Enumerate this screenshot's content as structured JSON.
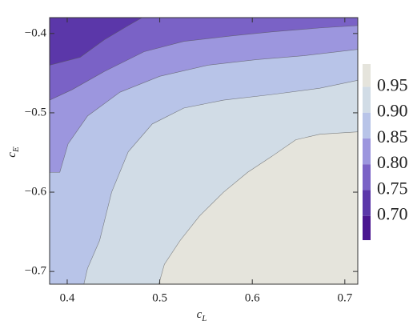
{
  "chart_data": {
    "type": "contour",
    "xlabel": "c",
    "xlabel_sub": "L",
    "ylabel": "c",
    "ylabel_sub": "E",
    "xlim": [
      0.381,
      0.714
    ],
    "ylim": [
      -0.716,
      -0.38
    ],
    "xticks": [
      0.4,
      0.5,
      0.6,
      0.7
    ],
    "yticks": [
      {
        "value": -0.7,
        "label": "−0.7"
      },
      {
        "value": -0.6,
        "label": "−0.6"
      },
      {
        "value": -0.5,
        "label": "−0.5"
      },
      {
        "value": -0.4,
        "label": "−0.4"
      }
    ],
    "zlim": [
      0.653,
      0.994
    ],
    "levels": [
      {
        "value": 0.7,
        "label": "0.70"
      },
      {
        "value": 0.75,
        "label": "0.75"
      },
      {
        "value": 0.8,
        "label": "0.80"
      },
      {
        "value": 0.85,
        "label": "0.85"
      },
      {
        "value": 0.9,
        "label": "0.90"
      },
      {
        "value": 0.95,
        "label": "0.95"
      }
    ],
    "colors": [
      "#4a1590",
      "#5b37a9",
      "#7a62c6",
      "#9c96de",
      "#b8c4e8",
      "#d1dce6",
      "#e5e4dc"
    ],
    "contours": [
      {
        "x": [
          0.381,
          0.414,
          0.44,
          0.466,
          0.481
        ],
        "y": [
          -0.44,
          -0.43,
          -0.408,
          -0.39,
          -0.38
        ]
      },
      {
        "x": [
          0.381,
          0.405,
          0.44,
          0.483,
          0.526,
          0.578,
          0.621,
          0.673,
          0.714
        ],
        "y": [
          -0.484,
          -0.471,
          -0.448,
          -0.423,
          -0.41,
          -0.403,
          -0.398,
          -0.393,
          -0.39
        ]
      },
      {
        "x": [
          0.381,
          0.392,
          0.401,
          0.422,
          0.457,
          0.5,
          0.552,
          0.604,
          0.656,
          0.714
        ],
        "y": [
          -0.575,
          -0.575,
          -0.539,
          -0.504,
          -0.474,
          -0.454,
          -0.44,
          -0.433,
          -0.428,
          -0.42
        ]
      },
      {
        "x": [
          0.418,
          0.422,
          0.435,
          0.448,
          0.466,
          0.492,
          0.526,
          0.569,
          0.621,
          0.673,
          0.714
        ],
        "y": [
          -0.716,
          -0.696,
          -0.661,
          -0.6,
          -0.549,
          -0.514,
          -0.494,
          -0.484,
          -0.477,
          -0.469,
          -0.459
        ]
      },
      {
        "x": [
          0.499,
          0.505,
          0.522,
          0.543,
          0.569,
          0.595,
          0.621,
          0.647,
          0.673,
          0.714
        ],
        "y": [
          -0.716,
          -0.691,
          -0.661,
          -0.63,
          -0.6,
          -0.575,
          -0.555,
          -0.534,
          -0.527,
          -0.524
        ]
      }
    ]
  }
}
